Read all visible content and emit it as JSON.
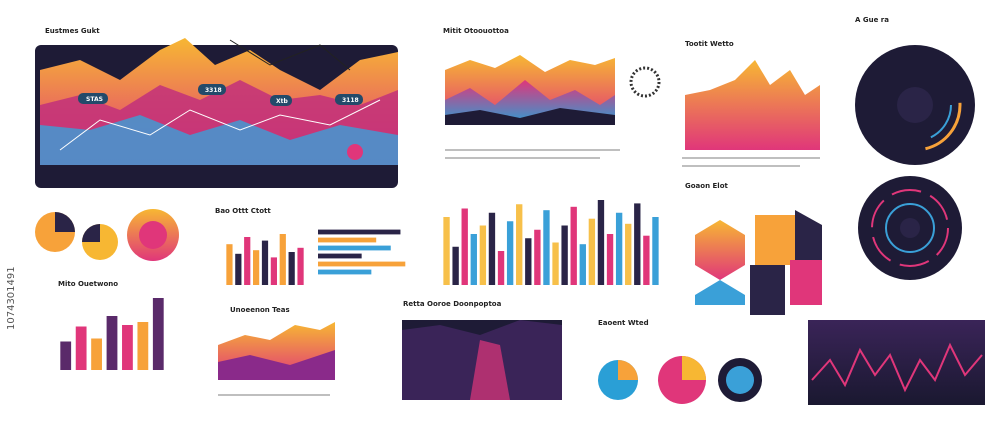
{
  "id_label": "1074301491",
  "titles": [
    "Eustmes Gukt",
    "Mitit Otoouottoa",
    "Tootit Wetto",
    "A Gue ra",
    "Goaon Elot",
    "Retta Ooroe Doonpoptoa",
    "Eaoent Wted",
    "Unoeenon Teas"
  ],
  "tags": [
    "STAS",
    "3318",
    "Xtb",
    "3118"
  ],
  "charts": [
    {
      "type": "bar",
      "title": "Bao Ottt Ctott",
      "values": [
        68,
        52,
        80,
        58,
        74,
        46,
        85,
        55,
        62
      ],
      "colors": [
        "#f7a23a",
        "#2a2447",
        "#e0367a"
      ],
      "ylim": [
        0,
        100
      ]
    },
    {
      "type": "hbar",
      "values": [
        85,
        60,
        75,
        45,
        90,
        55
      ],
      "colors": [
        "#2a2447",
        "#f7a23a",
        "#3aa0d8"
      ],
      "ylim": [
        0,
        100
      ]
    },
    {
      "type": "bar",
      "values": [
        80,
        45,
        90,
        60,
        70,
        85,
        40,
        75,
        95,
        55,
        65,
        88,
        50,
        70,
        92,
        48,
        78,
        100,
        60,
        85,
        72,
        96,
        58,
        80
      ],
      "colors": [
        "#f7c04a",
        "#2a2447",
        "#e0367a",
        "#3aa0d8"
      ],
      "ylim": [
        0,
        100
      ]
    },
    {
      "type": "bar",
      "title": "Mito Ouetwono",
      "values": [
        38,
        58,
        42,
        72,
        60,
        64,
        96
      ],
      "colors": [
        "#5a2a6a",
        "#e0367a",
        "#f7a23a"
      ],
      "ylim": [
        0,
        100
      ]
    }
  ]
}
